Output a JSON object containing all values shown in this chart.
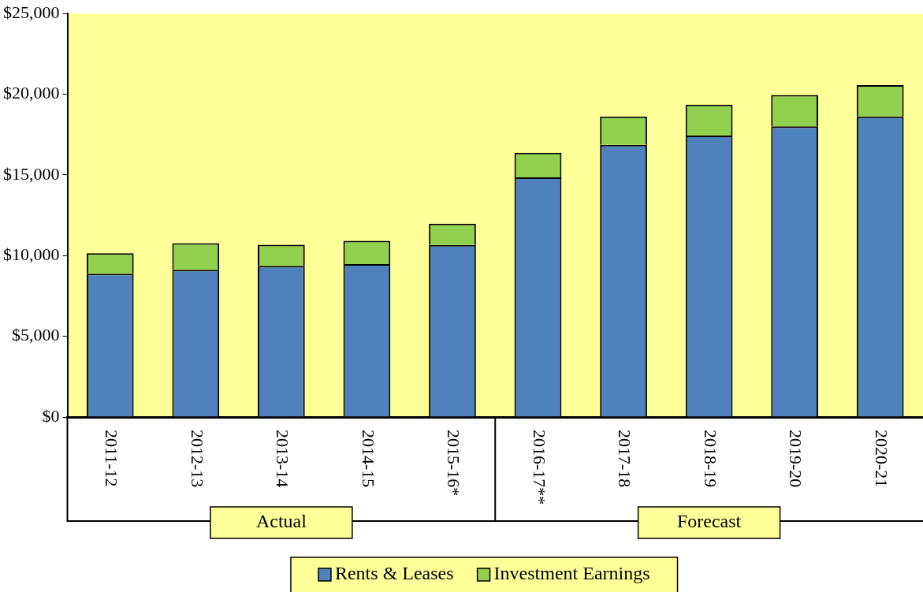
{
  "chart_data": {
    "type": "bar",
    "stacked": true,
    "categories": [
      "2011-12",
      "2012-13",
      "2013-14",
      "2014-15",
      "2015-16*",
      "2016-17**",
      "2017-18",
      "2018-19",
      "2019-20",
      "2020-21"
    ],
    "series": [
      {
        "name": "Rents & Leases",
        "color": "#4f81bd",
        "values": [
          8880,
          9120,
          9370,
          9480,
          10660,
          14850,
          16860,
          17440,
          18010,
          18620
        ]
      },
      {
        "name": "Investment Earnings",
        "color": "#92d050",
        "values": [
          1270,
          1650,
          1300,
          1440,
          1320,
          1520,
          1760,
          1910,
          1950,
          1940
        ]
      }
    ],
    "ylim": [
      0,
      25000
    ],
    "yticks": [
      {
        "value": 0,
        "label": "$0"
      },
      {
        "value": 5000,
        "label": "$5,000"
      },
      {
        "value": 10000,
        "label": "$10,000"
      },
      {
        "value": 15000,
        "label": "$15,000"
      },
      {
        "value": 20000,
        "label": "$20,000"
      },
      {
        "value": 25000,
        "label": "$25,000"
      }
    ],
    "grid": false,
    "legend": "bottom",
    "annotations": [
      "Actual",
      "Forecast"
    ]
  }
}
